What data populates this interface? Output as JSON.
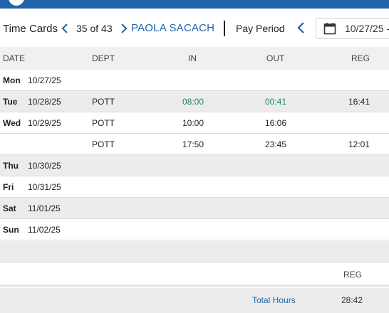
{
  "header": {
    "title": "Time Cards",
    "counter": "35 of 43",
    "employee_name": "PAOLA SACACH",
    "pay_period_label": "Pay Period",
    "pay_period_start": "10/27/25 -"
  },
  "grid": {
    "columns": [
      "DATE",
      "DEPT",
      "IN",
      "OUT",
      "REG"
    ],
    "rows": [
      {
        "day": "Mon",
        "date": "10/27/25",
        "dept": "",
        "in": "",
        "out": "",
        "reg": ""
      },
      {
        "day": "Tue",
        "date": "10/28/25",
        "dept": "POTT",
        "in": "08:00",
        "out": "00:41",
        "reg": "16:41"
      },
      {
        "day": "Wed",
        "date": "10/29/25",
        "dept": "POTT",
        "in": "10:00",
        "out": "16:06",
        "reg": ""
      },
      {
        "day": "",
        "date": "",
        "dept": "POTT",
        "in": "17:50",
        "out": "23:45",
        "reg": "12:01"
      },
      {
        "day": "Thu",
        "date": "10/30/25",
        "dept": "",
        "in": "",
        "out": "",
        "reg": ""
      },
      {
        "day": "Fri",
        "date": "10/31/25",
        "dept": "",
        "in": "",
        "out": "",
        "reg": ""
      },
      {
        "day": "Sat",
        "date": "11/01/25",
        "dept": "",
        "in": "",
        "out": "",
        "reg": ""
      },
      {
        "day": "Sun",
        "date": "11/02/25",
        "dept": "",
        "in": "",
        "out": "",
        "reg": ""
      }
    ]
  },
  "totals": {
    "column_header": "REG",
    "label": "Total Hours",
    "reg": "28:42"
  },
  "colors": {
    "brand_blue": "#1f64a8",
    "edited_time_green": "#1e8a5a",
    "row_alt_gray": "#ececec"
  },
  "icons": [
    "chevron-left-icon",
    "chevron-right-icon",
    "calendar-icon"
  ]
}
